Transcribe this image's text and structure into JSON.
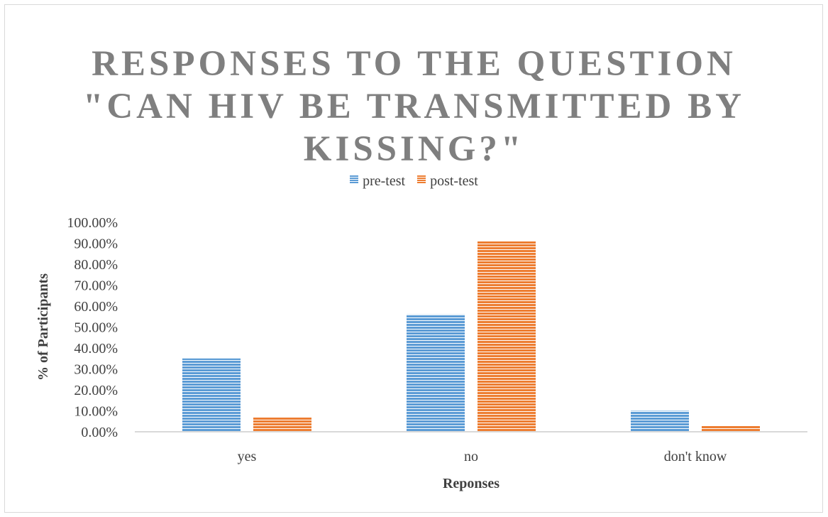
{
  "chart_data": {
    "type": "bar",
    "title_lines": [
      "RESPONSES TO THE QUESTION",
      "\"CAN HIV BE TRANSMITTED BY",
      "KISSING?\""
    ],
    "categories": [
      "yes",
      "no",
      "don't know"
    ],
    "series": [
      {
        "name": "pre-test",
        "values": [
          0.35,
          0.56,
          0.1
        ],
        "color": "#5b9bd5"
      },
      {
        "name": "post-test",
        "values": [
          0.07,
          0.91,
          0.03
        ],
        "color": "#ed7d31"
      }
    ],
    "xlabel": "Reponses",
    "ylabel": "% of Participants",
    "ylim": [
      0,
      1
    ],
    "y_ticks": [
      "0.00%",
      "10.00%",
      "20.00%",
      "30.00%",
      "40.00%",
      "50.00%",
      "60.00%",
      "70.00%",
      "80.00%",
      "90.00%",
      "100.00%"
    ],
    "legend_position": "top",
    "grid": false
  }
}
